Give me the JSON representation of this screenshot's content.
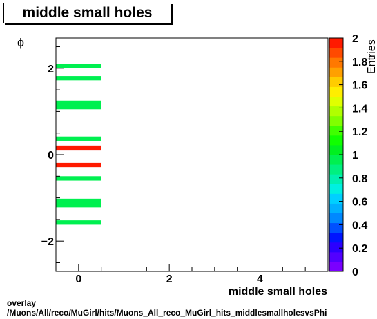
{
  "chart_data": {
    "type": "heatmap",
    "title": "middle small holes",
    "xlabel": "middle small holes",
    "ylabel": "ϕ",
    "zlabel": "Entries",
    "xlim": [
      -0.5,
      5.5
    ],
    "ylim": [
      -2.7,
      2.7
    ],
    "zlim": [
      0,
      2
    ],
    "x_ticks": [
      "0",
      "2",
      "4"
    ],
    "y_ticks": [
      "−2",
      "0",
      "2"
    ],
    "z_ticks": [
      "0",
      "0.2",
      "0.4",
      "0.6",
      "0.8",
      "1",
      "1.2",
      "1.4",
      "1.6",
      "1.8",
      "2"
    ],
    "cells": [
      {
        "x0": -0.5,
        "x1": 0.5,
        "y0": 2.0,
        "y1": 2.1,
        "value": 1
      },
      {
        "x0": -0.5,
        "x1": 0.5,
        "y0": 1.72,
        "y1": 1.82,
        "value": 1
      },
      {
        "x0": -0.5,
        "x1": 0.5,
        "y0": 1.05,
        "y1": 1.25,
        "value": 1
      },
      {
        "x0": -0.5,
        "x1": 0.5,
        "y0": 0.32,
        "y1": 0.42,
        "value": 1
      },
      {
        "x0": -0.5,
        "x1": 0.5,
        "y0": 0.11,
        "y1": 0.21,
        "value": 2
      },
      {
        "x0": -0.5,
        "x1": 0.5,
        "y0": -0.29,
        "y1": -0.19,
        "value": 2
      },
      {
        "x0": -0.5,
        "x1": 0.5,
        "y0": -0.6,
        "y1": -0.5,
        "value": 1
      },
      {
        "x0": -0.5,
        "x1": 0.5,
        "y0": -1.22,
        "y1": -1.02,
        "value": 1
      },
      {
        "x0": -0.5,
        "x1": 0.5,
        "y0": -1.62,
        "y1": -1.52,
        "value": 1
      }
    ],
    "palette": [
      "#7a00ff",
      "#5200ff",
      "#2b00ff",
      "#0015ff",
      "#0050ff",
      "#0088ff",
      "#00b0ff",
      "#00d0ff",
      "#00f0e0",
      "#00f0b0",
      "#00f080",
      "#00f050",
      "#00f020",
      "#10ff00",
      "#40ff00",
      "#80ff00",
      "#b0ff00",
      "#e0ff00",
      "#ffee00",
      "#ffcc00",
      "#ffa000",
      "#ff7800",
      "#ff4a00",
      "#ff1a00"
    ]
  },
  "footer": {
    "line1": "overlay",
    "line2": "/Muons/All/reco/MuGirl/hits/Muons_All_reco_MuGirl_hits_middlesmallholesvsPhi"
  }
}
